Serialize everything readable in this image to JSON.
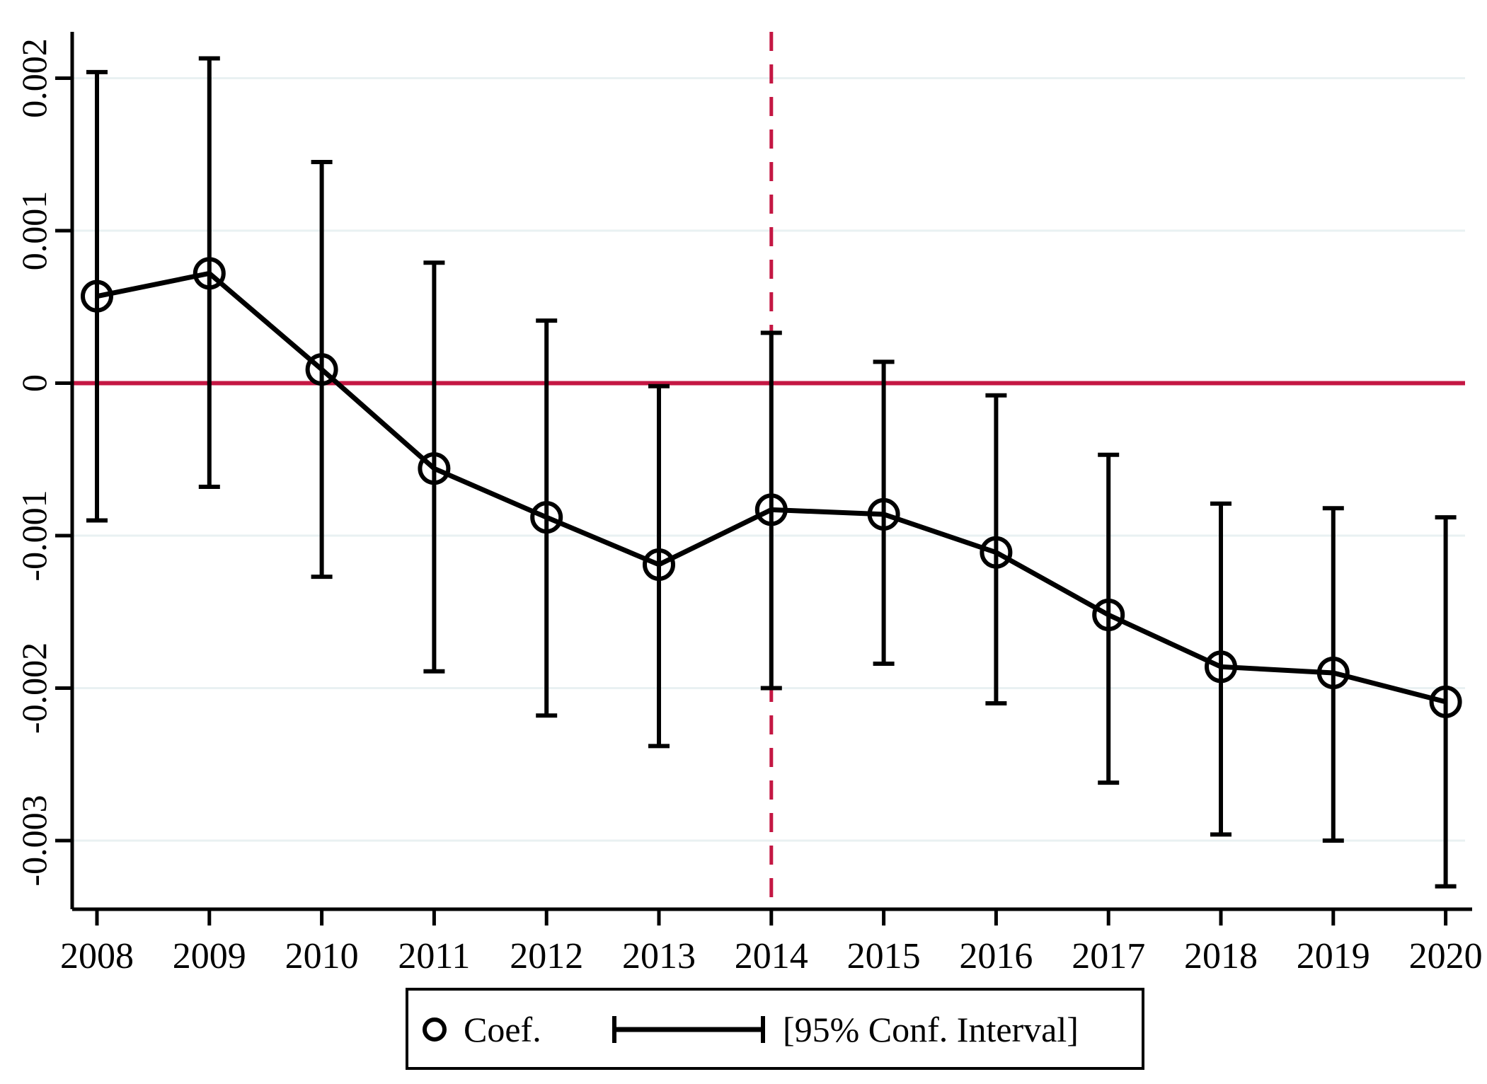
{
  "chart_data": {
    "type": "line",
    "subtype": "coefficient-plot-with-error-bars",
    "title": "",
    "xlabel": "",
    "ylabel": "",
    "x": [
      2008,
      2009,
      2010,
      2011,
      2012,
      2013,
      2014,
      2015,
      2016,
      2017,
      2018,
      2019,
      2020
    ],
    "x_tick_labels": [
      "2008",
      "2009",
      "2010",
      "2011",
      "2012",
      "2013",
      "2014",
      "2015",
      "2016",
      "2017",
      "2018",
      "2019",
      "2020"
    ],
    "points": [
      {
        "year": 2008,
        "coef": 0.00057,
        "ci_low": -0.0009,
        "ci_high": 0.00204
      },
      {
        "year": 2009,
        "coef": 0.00072,
        "ci_low": -0.00068,
        "ci_high": 0.00213
      },
      {
        "year": 2010,
        "coef": 9e-05,
        "ci_low": -0.00127,
        "ci_high": 0.00145
      },
      {
        "year": 2011,
        "coef": -0.00056,
        "ci_low": -0.00189,
        "ci_high": 0.00079
      },
      {
        "year": 2012,
        "coef": -0.00088,
        "ci_low": -0.00218,
        "ci_high": 0.00041
      },
      {
        "year": 2013,
        "coef": -0.00119,
        "ci_low": -0.00238,
        "ci_high": -2e-05
      },
      {
        "year": 2014,
        "coef": -0.00083,
        "ci_low": -0.002,
        "ci_high": 0.00033
      },
      {
        "year": 2015,
        "coef": -0.00086,
        "ci_low": -0.00184,
        "ci_high": 0.00014
      },
      {
        "year": 2016,
        "coef": -0.00111,
        "ci_low": -0.0021,
        "ci_high": -8e-05
      },
      {
        "year": 2017,
        "coef": -0.00152,
        "ci_low": -0.00262,
        "ci_high": -0.00047
      },
      {
        "year": 2018,
        "coef": -0.00186,
        "ci_low": -0.00296,
        "ci_high": -0.00079
      },
      {
        "year": 2019,
        "coef": -0.0019,
        "ci_low": -0.003,
        "ci_high": -0.00082
      },
      {
        "year": 2020,
        "coef": -0.00209,
        "ci_low": -0.0033,
        "ci_high": -0.00088
      }
    ],
    "series": [
      {
        "name": "Coef.",
        "values": [
          0.00057,
          0.00072,
          9e-05,
          -0.00056,
          -0.00088,
          -0.00119,
          -0.00083,
          -0.00086,
          -0.00111,
          -0.00152,
          -0.00186,
          -0.0019,
          -0.00209
        ]
      },
      {
        "name": "95% CI lower",
        "values": [
          -0.0009,
          -0.00068,
          -0.00127,
          -0.00189,
          -0.00218,
          -0.00238,
          -0.002,
          -0.00184,
          -0.0021,
          -0.00262,
          -0.00296,
          -0.003,
          -0.0033
        ]
      },
      {
        "name": "95% CI upper",
        "values": [
          0.00204,
          0.00213,
          0.00145,
          0.00079,
          0.00041,
          -2e-05,
          0.00033,
          0.00014,
          -8e-05,
          -0.00047,
          -0.00079,
          -0.00082,
          -0.00088
        ]
      }
    ],
    "y_ticks": [
      0.002,
      0.001,
      0,
      -0.001,
      -0.002,
      -0.003
    ],
    "y_tick_labels": [
      "0.002",
      "0.001",
      "0",
      "-0.001",
      "-0.002",
      "-0.003"
    ],
    "ylim": [
      -0.00345,
      0.00229
    ],
    "grid": true,
    "gridlines": "horizontal-only",
    "reference_lines": [
      {
        "axis": "y",
        "value": 0,
        "style": "solid",
        "color": "#C41743"
      },
      {
        "axis": "x",
        "value": 2014,
        "style": "dashed",
        "color": "#C41743"
      }
    ],
    "legend": {
      "position": "bottom-center",
      "coef_label": "Coef.",
      "ci_label": "[95% Conf. Interval]"
    },
    "colors": {
      "data": "#000000",
      "reference": "#C41743",
      "gridline": "#E9F1F2",
      "background": "#FFFFFF"
    }
  }
}
